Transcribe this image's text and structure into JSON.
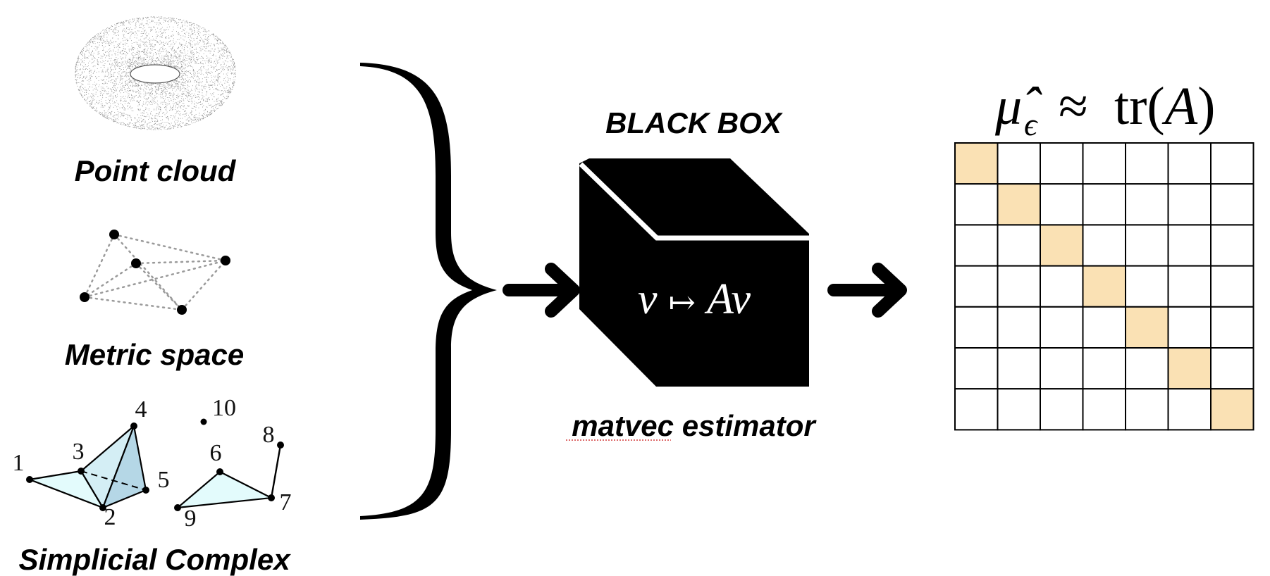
{
  "inputs": {
    "point_cloud_label": "Point cloud",
    "metric_space_label": "Metric space",
    "simplicial_complex_label": "Simplicial Complex",
    "vertex_labels": [
      "1",
      "2",
      "3",
      "4",
      "5",
      "6",
      "7",
      "8",
      "9",
      "10"
    ]
  },
  "black_box": {
    "title": "BLACK BOX",
    "op_input": "v",
    "op_arrow": "↦",
    "op_output": "Av",
    "caption_word1": "matvec",
    "caption_word2": "estimator"
  },
  "output": {
    "est_mu": "μ̂",
    "est_eps": "ϵ",
    "approx": "≈",
    "trace": "tr(",
    "trace_arg": "A",
    "trace_close": ")",
    "matrix_size": 7,
    "highlight": "diagonal"
  },
  "colors": {
    "diag_fill": "#fae1b4",
    "simplex_fill": "#e3fbfc",
    "simplex_dark": "#b5d7e6",
    "stroke": "#000000"
  }
}
